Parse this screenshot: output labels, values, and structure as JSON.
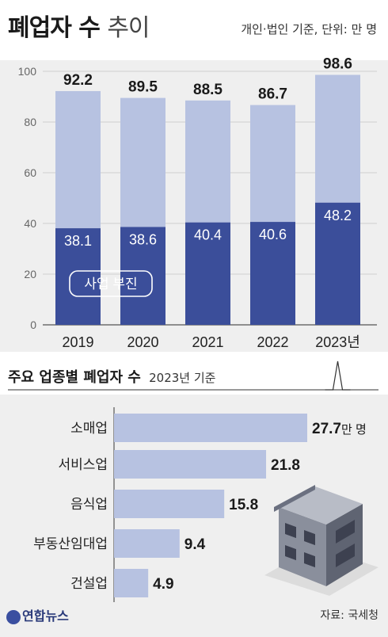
{
  "title": {
    "bold": "폐업자 수",
    "light": "추이"
  },
  "unit_note": "개인·법인 기준, 단위: 만 명",
  "subtitle": {
    "bold": "주요 업종별 폐업자 수",
    "basis": "2023년 기준"
  },
  "logo": "연합뉴스",
  "source": "자료: 국세청",
  "colors": {
    "total_bar": "#b7c2e1",
    "business_slump_bar": "#3b4e9a",
    "industry_bar": "#b7c2e1",
    "panel_bg": "#efefef"
  },
  "chart_data": [
    {
      "type": "bar",
      "stacked": true,
      "categories": [
        "2019",
        "2020",
        "2021",
        "2022",
        "2023년"
      ],
      "ylim": [
        0,
        100
      ],
      "yticks": [
        0,
        20,
        40,
        60,
        80,
        100
      ],
      "grid": true,
      "series": [
        {
          "name": "사업 부진",
          "values": [
            38.1,
            38.6,
            40.4,
            40.6,
            48.2
          ]
        },
        {
          "name": "",
          "values": [
            54.1,
            50.9,
            48.1,
            46.1,
            50.4
          ]
        }
      ],
      "totals": [
        92.2,
        89.5,
        88.5,
        86.7,
        98.6
      ]
    },
    {
      "type": "bar",
      "orientation": "horizontal",
      "categories": [
        "소매업",
        "서비스업",
        "음식업",
        "부동산임대업",
        "건설업"
      ],
      "values": [
        27.7,
        21.8,
        15.8,
        9.4,
        4.9
      ],
      "first_value_unit": "만 명"
    }
  ]
}
